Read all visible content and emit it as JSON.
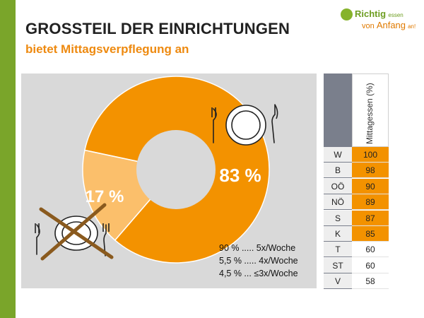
{
  "slide": {
    "title": "GROSSTEIL DER EINRICHTUNGEN",
    "subtitle": "bietet Mittagsverpflegung an"
  },
  "logo": {
    "line1_a": "Richtig",
    "line1_b": "essen",
    "line2_a": "von",
    "line2_b": "Anfang",
    "line2_c": "an!"
  },
  "colors": {
    "accent_green": "#7aa52a",
    "orange": "#f39200",
    "light_orange": "#fbbf6b",
    "grey_panel": "#d9d9d9",
    "table_header_grey": "#7a7f8c"
  },
  "chart_data": [
    {
      "type": "pie",
      "variant": "donut",
      "values": [
        83,
        17
      ],
      "slice_labels": [
        "83 %",
        "17 %"
      ],
      "colors": [
        "#f39200",
        "#fbbf6b"
      ],
      "notes": [
        "90 % ..... 5x/Woche",
        "5,5 % ..... 4x/Woche",
        "4,5 % ... ≤3x/Woche"
      ],
      "icons": [
        "plate-with-cutlery-icon",
        "crossed-out-plate-icon"
      ]
    },
    {
      "type": "table",
      "column_header": "Mittagessen (%)",
      "rows": [
        {
          "region": "W",
          "value": "100",
          "highlight": true
        },
        {
          "region": "B",
          "value": "98",
          "highlight": true
        },
        {
          "region": "OÖ",
          "value": "90",
          "highlight": true
        },
        {
          "region": "NÖ",
          "value": "89",
          "highlight": true
        },
        {
          "region": "S",
          "value": "87",
          "highlight": true
        },
        {
          "region": "K",
          "value": "85",
          "highlight": true
        },
        {
          "region": "T",
          "value": "60",
          "highlight": false
        },
        {
          "region": "ST",
          "value": "60",
          "highlight": false
        },
        {
          "region": "V",
          "value": "58",
          "highlight": false
        }
      ]
    }
  ]
}
